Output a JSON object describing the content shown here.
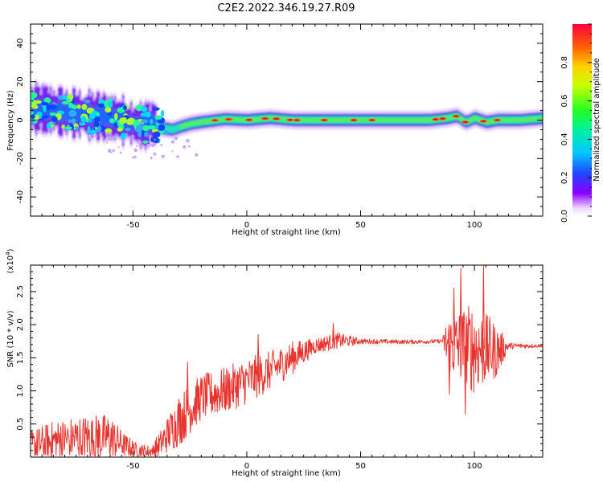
{
  "title": "C2E2.2022.346.19.27.R09",
  "colors": {
    "snr_line": "#e8342e",
    "frame": "#000000",
    "background": "#ffffff"
  },
  "chart_data": [
    {
      "type": "heatmap",
      "name": "spectrogram",
      "xlabel": "Height of straight line (km)",
      "ylabel": "Frequency (Hz)",
      "xlim": [
        -95,
        130
      ],
      "ylim": [
        -50,
        50
      ],
      "x_ticks": [
        -50,
        0,
        50,
        100
      ],
      "y_ticks": [
        40,
        20,
        0,
        -20,
        -40
      ],
      "colorbar": {
        "label": "Normalized spectral amplitude",
        "range": [
          0,
          1
        ],
        "ticks": [
          0.0,
          0.2,
          0.4,
          0.6,
          0.8
        ],
        "tick_labels": [
          "0.0",
          "0.2",
          "0.4",
          "0.6",
          "0.8"
        ]
      },
      "ridge": {
        "description_points": [
          {
            "x": -92,
            "f": 6
          },
          {
            "x": -85,
            "f": 5
          },
          {
            "x": -80,
            "f": 4
          },
          {
            "x": -72,
            "f": 3
          },
          {
            "x": -65,
            "f": 2
          },
          {
            "x": -58,
            "f": 1
          },
          {
            "x": -50,
            "f": -2
          },
          {
            "x": -45,
            "f": -3
          },
          {
            "x": -42,
            "f": -1
          },
          {
            "x": -38,
            "f": -4
          },
          {
            "x": -33,
            "f": -5
          },
          {
            "x": -28,
            "f": -3
          },
          {
            "x": -25,
            "f": -2
          },
          {
            "x": -20,
            "f": -1
          },
          {
            "x": -10,
            "f": 0.5
          },
          {
            "x": 0,
            "f": 0
          },
          {
            "x": 10,
            "f": 1
          },
          {
            "x": 20,
            "f": 0
          },
          {
            "x": 40,
            "f": 0
          },
          {
            "x": 60,
            "f": 0
          },
          {
            "x": 80,
            "f": 0
          },
          {
            "x": 88,
            "f": 1
          },
          {
            "x": 92,
            "f": 2
          },
          {
            "x": 96,
            "f": -1
          },
          {
            "x": 100,
            "f": 1
          },
          {
            "x": 105,
            "f": -1
          },
          {
            "x": 110,
            "f": 0
          },
          {
            "x": 120,
            "f": 0
          },
          {
            "x": 130,
            "f": 1
          }
        ]
      }
    },
    {
      "type": "line",
      "name": "snr",
      "xlabel": "Height of straight line (km)",
      "ylabel": "SNR (10 * v/v)",
      "multiplier_label": "(x10",
      "multiplier_exp": "4",
      "multiplier_close": ")",
      "xlim": [
        -95,
        130
      ],
      "ylim": [
        0,
        2.9
      ],
      "x_ticks": [
        -50,
        0,
        50,
        100
      ],
      "y_ticks": [
        0.5,
        1,
        1.5,
        2,
        2.5
      ],
      "y_tick_labels": [
        "0.5",
        "1.0",
        "1.5",
        "2.0",
        "2.5"
      ],
      "envelope": [
        {
          "x": -95,
          "base": 0.15,
          "amp": 0.25
        },
        {
          "x": -85,
          "base": 0.25,
          "amp": 0.3
        },
        {
          "x": -70,
          "base": 0.3,
          "amp": 0.35
        },
        {
          "x": -60,
          "base": 0.3,
          "amp": 0.35
        },
        {
          "x": -55,
          "base": 0.2,
          "amp": 0.2
        },
        {
          "x": -48,
          "base": 0.1,
          "amp": 0.1
        },
        {
          "x": -42,
          "base": 0.08,
          "amp": 0.1
        },
        {
          "x": -38,
          "base": 0.2,
          "amp": 0.2
        },
        {
          "x": -30,
          "base": 0.55,
          "amp": 0.4
        },
        {
          "x": -20,
          "base": 0.9,
          "amp": 0.35
        },
        {
          "x": -10,
          "base": 1.0,
          "amp": 0.35
        },
        {
          "x": 0,
          "base": 1.15,
          "amp": 0.35
        },
        {
          "x": 10,
          "base": 1.3,
          "amp": 0.3
        },
        {
          "x": 20,
          "base": 1.5,
          "amp": 0.25
        },
        {
          "x": 30,
          "base": 1.68,
          "amp": 0.12
        },
        {
          "x": 40,
          "base": 1.76,
          "amp": 0.12
        },
        {
          "x": 50,
          "base": 1.75,
          "amp": 0.04
        },
        {
          "x": 70,
          "base": 1.74,
          "amp": 0.03
        },
        {
          "x": 86,
          "base": 1.75,
          "amp": 0.03
        },
        {
          "x": 88,
          "base": 1.7,
          "amp": 0.45
        },
        {
          "x": 100,
          "base": 1.65,
          "amp": 0.7
        },
        {
          "x": 110,
          "base": 1.6,
          "amp": 0.4
        },
        {
          "x": 115,
          "base": 1.68,
          "amp": 0.05
        },
        {
          "x": 130,
          "base": 1.68,
          "amp": 0.02
        }
      ],
      "peaks": [
        {
          "x": 104,
          "y": 2.9
        },
        {
          "x": 94,
          "y": 2.85
        },
        {
          "x": 91,
          "y": 2.55
        },
        {
          "x": 96,
          "y": 0.65
        },
        {
          "x": 89,
          "y": 0.95
        },
        {
          "x": 38,
          "y": 2.02
        },
        {
          "x": -26,
          "y": 1.43
        },
        {
          "x": 5,
          "y": 1.85
        }
      ]
    }
  ]
}
